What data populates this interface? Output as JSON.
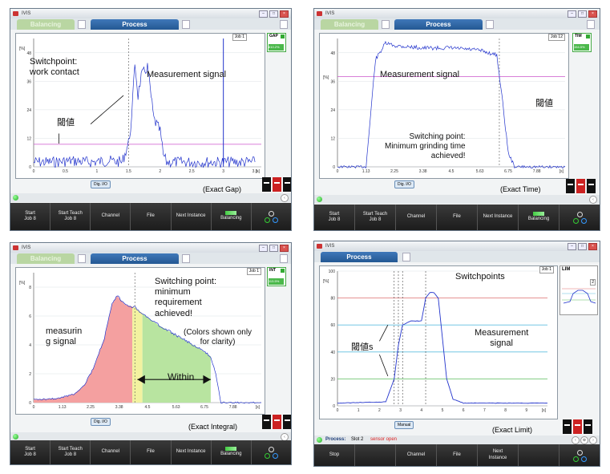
{
  "colors": {
    "signal": "#2233cc",
    "threshold": "#cc55cc",
    "red_zone": "#f4a0a0",
    "yellow_zone": "#f2f2a0",
    "green_zone": "#b8e4a0",
    "limit_red": "#e07070",
    "limit_cyan": "#60c0e0",
    "limit_green": "#60c060",
    "tab_active": "#2e64a5",
    "tab_inactive": "#b9d6a2"
  },
  "icons": [
    "app-icon",
    "document-icon",
    "led-icon",
    "back-icon",
    "settings-icon",
    "balancing-icon",
    "configuration-icon"
  ],
  "panel1": {
    "app": "IVIS",
    "tab_balancing": "Balancing",
    "tab_process": "Process",
    "job": "Job 1",
    "mode": "GAP",
    "mode_value": "810.2%",
    "y_unit": "[%]",
    "x_unit": "[s]",
    "y_ticks": [
      "0",
      "12",
      "24",
      "36",
      "48"
    ],
    "x_ticks": [
      "0",
      "0.5",
      "1",
      "1.5",
      "2",
      "2.5",
      "3",
      "3.5"
    ],
    "dig_btn": "Dig. I/O",
    "annot_switch": "Switchpoint:\nwork contact",
    "annot_signal": "Measurement signal",
    "annot_threshold": "閾値",
    "caption": "(Exact Gap)",
    "buttons": [
      "Start\nJob 8",
      "Start Teach\nJob 8",
      "Channel",
      "File",
      "Next Instance",
      "Balancing",
      ""
    ],
    "chart_data": {
      "type": "line",
      "y_range": [
        0,
        54
      ],
      "x_range": [
        0,
        3.6
      ],
      "threshold": 9.5,
      "series": [
        {
          "x": [
            0,
            0.3,
            0.6,
            0.9,
            1.2,
            1.4,
            1.5,
            1.55,
            1.6,
            1.65,
            1.7,
            1.8,
            1.9,
            2.0,
            2.05,
            2.1,
            2.5,
            3.0,
            3.5
          ],
          "y": [
            2,
            2,
            2.5,
            2,
            2.5,
            2,
            10,
            20,
            44,
            30,
            38,
            42,
            20,
            15,
            5,
            2,
            2,
            2,
            2
          ]
        }
      ]
    }
  },
  "panel2": {
    "app": "IVIS",
    "tab_balancing": "Balancing",
    "tab_process": "Process",
    "job": "Job 12",
    "mode": "TIM",
    "mode_value": "154.5%",
    "y_unit": "[%]",
    "x_unit": "[s]",
    "y_ticks": [
      "0",
      "12",
      "24",
      "36",
      "48"
    ],
    "x_ticks": [
      "0",
      "1.13",
      "2.25",
      "3.38",
      "4.5",
      "5.63",
      "6.75",
      "7.88"
    ],
    "dig_btn": "Dig. I/O",
    "annot_signal": "Measurement signal",
    "annot_threshold": "閾値",
    "annot_switch": "Switching point:\nMinimum grinding time\nachieved!",
    "caption": "(Exact Time)",
    "buttons": [
      "Start\nJob 8",
      "Start Teach\nJob 8",
      "Channel",
      "File",
      "Next Instance",
      "Balancing",
      ""
    ],
    "chart_data": {
      "type": "line",
      "y_range": [
        0,
        54
      ],
      "x_range": [
        0,
        9
      ],
      "threshold": 38,
      "series": [
        {
          "x": [
            0,
            1.13,
            1.5,
            1.9,
            2.25,
            3.38,
            4.5,
            5.63,
            6.3,
            6.5,
            6.75,
            7.0,
            9
          ],
          "y": [
            0,
            0,
            45,
            52,
            51,
            50,
            50,
            49,
            47,
            30,
            6,
            0,
            0
          ]
        }
      ]
    }
  },
  "panel3": {
    "app": "IVIS",
    "tab_balancing": "Balancing",
    "tab_process": "Process",
    "job": "Job 1",
    "mode": "INT",
    "mode_value": "113.5%",
    "y_unit": "[%]",
    "x_unit": "[s]",
    "y_ticks": [
      "0",
      "2",
      "4",
      "6",
      "8"
    ],
    "x_ticks": [
      "0",
      "1.13",
      "2.25",
      "3.38",
      "4.5",
      "5.63",
      "6.75",
      "7.88"
    ],
    "dig_btn": "Dig. I/O",
    "annot_switch": "Switching point:\nminimum\nrequirement\nachieved!",
    "annot_colors": "(Colors shown only\nfor clarity)",
    "annot_signal": "measurin\ng signal",
    "annot_within": "Within",
    "caption": "(Exact Integral)",
    "buttons": [
      "Start\nJob 8",
      "Start Teach\nJob 8",
      "Channel",
      "File",
      "Next Instance",
      "Balancing",
      ""
    ],
    "chart_data": {
      "type": "area",
      "y_range": [
        0,
        9
      ],
      "x_range": [
        0,
        9
      ],
      "series": [
        {
          "x": [
            0,
            1,
            1.6,
            2.0,
            2.4,
            2.8,
            3.1,
            3.3,
            3.6,
            4.0,
            4.5,
            5.0,
            5.5,
            6.0,
            6.5,
            7.0,
            7.2,
            7.4,
            9
          ],
          "y": [
            0.2,
            0.3,
            0.6,
            1.2,
            2.5,
            4.5,
            6.8,
            7.4,
            6.8,
            6.6,
            5.9,
            5.3,
            4.8,
            4.3,
            3.8,
            3.2,
            2.0,
            0,
            0
          ]
        }
      ],
      "zones": [
        {
          "from": 0,
          "to": 3.9,
          "color": "red"
        },
        {
          "from": 3.9,
          "to": 4.3,
          "color": "yellow"
        },
        {
          "from": 4.3,
          "to": 7.0,
          "color": "green"
        }
      ]
    }
  },
  "panel4": {
    "app": "IVIS",
    "tab_process": "Process",
    "job": "Job 1",
    "mode": "LIM",
    "mini_badge": "2",
    "y_unit": "[%]",
    "x_unit": "[s]",
    "x_unit2": "10",
    "y_ticks": [
      "0",
      "20",
      "40",
      "60",
      "80",
      "100"
    ],
    "x_ticks": [
      "0",
      "1",
      "2",
      "3",
      "4",
      "5",
      "6",
      "7",
      "8",
      "9"
    ],
    "manual_btn": "Manual",
    "annot_switch": "Switchpoints",
    "annot_signal": "Measurement\nsignal",
    "annot_threshold": "閾値s",
    "status_label": "Process:",
    "status_text": "Slot 2",
    "status_error": "sensor open",
    "caption": "(Exact Limit)",
    "buttons": [
      "Stop",
      "",
      "Channel",
      "File",
      "Next\nInstance",
      "",
      ""
    ],
    "chart_data": {
      "type": "line",
      "y_range": [
        0,
        100
      ],
      "x_range": [
        0,
        10
      ],
      "thresholds": [
        {
          "y": 80,
          "color": "red"
        },
        {
          "y": 60,
          "color": "cyan"
        },
        {
          "y": 40,
          "color": "cyan"
        },
        {
          "y": 20,
          "color": "green"
        }
      ],
      "series": [
        {
          "x": [
            0,
            2.3,
            2.7,
            2.9,
            3.1,
            3.5,
            4.0,
            4.2,
            4.4,
            4.6,
            4.8,
            5.2,
            5.5,
            6.0,
            10
          ],
          "y": [
            2,
            3,
            20,
            45,
            60,
            63,
            63,
            80,
            84,
            84,
            80,
            20,
            5,
            2,
            2
          ]
        }
      ]
    }
  }
}
